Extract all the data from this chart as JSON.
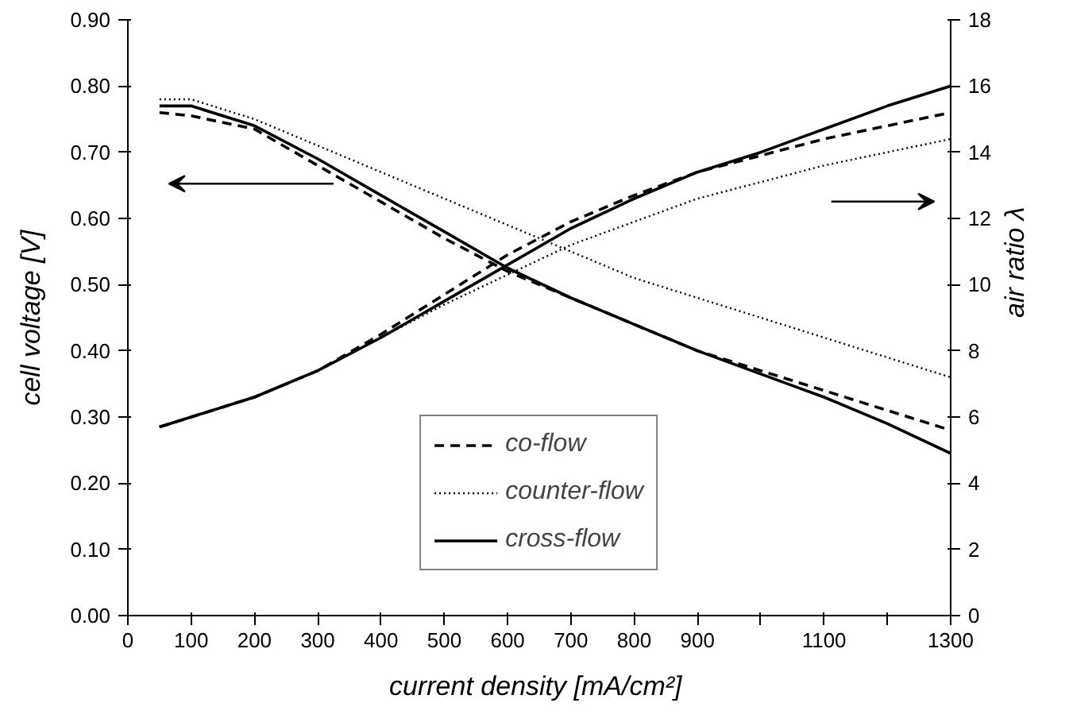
{
  "chart_data": {
    "type": "line",
    "xlabel": "current density  [mA/cm²]",
    "ylabel": "cell voltage [V]",
    "y2label": "air ratio λ",
    "x": [
      50,
      100,
      200,
      300,
      400,
      500,
      600,
      700,
      800,
      900,
      1000,
      1100,
      1200,
      1300
    ],
    "xlim": [
      0,
      1300
    ],
    "xticks": [
      0,
      100,
      200,
      300,
      400,
      500,
      600,
      700,
      800,
      900,
      {
        "value": 1000,
        "label": null
      },
      1100,
      {
        "value": 1200,
        "label": null
      },
      1300
    ],
    "ylim": [
      0,
      0.9
    ],
    "yticks": [
      {
        "value": 0,
        "label": "0.00"
      },
      {
        "value": 0.1,
        "label": "0.10"
      },
      {
        "value": 0.2,
        "label": "0.20"
      },
      {
        "value": 0.3,
        "label": "0.30"
      },
      {
        "value": 0.4,
        "label": "0.40"
      },
      {
        "value": 0.5,
        "label": "0.50"
      },
      {
        "value": 0.6,
        "label": "0.60"
      },
      {
        "value": 0.7,
        "label": "0.70"
      },
      {
        "value": 0.8,
        "label": "0.80"
      },
      {
        "value": 0.9,
        "label": "0.90"
      }
    ],
    "y2lim": [
      0,
      18
    ],
    "y2ticks": [
      0,
      2,
      4,
      6,
      8,
      10,
      12,
      14,
      16,
      18
    ],
    "grid": false,
    "legend": "bottom",
    "marker": "none",
    "series": [
      {
        "name": "co-flow",
        "color": "#000000",
        "line_style": "dashed",
        "values": [
          0.76,
          0.755,
          0.735,
          0.68,
          0.625,
          0.57,
          0.52,
          0.48,
          0.44,
          0.4,
          0.37,
          0.34,
          0.31,
          0.28
        ]
      },
      {
        "name": "counter-flow",
        "color": "#000000",
        "line_style": "dotted",
        "values": [
          0.78,
          0.78,
          0.75,
          0.71,
          0.67,
          0.63,
          0.59,
          0.55,
          0.51,
          0.48,
          0.45,
          0.42,
          0.39,
          0.36
        ]
      },
      {
        "name": "cross-flow",
        "color": "#000000",
        "line_style": "solid",
        "values": [
          0.77,
          0.77,
          0.74,
          0.69,
          0.635,
          0.58,
          0.525,
          0.48,
          0.44,
          0.4,
          0.365,
          0.33,
          0.29,
          0.245
        ]
      },
      {
        "color": "#000000",
        "line_style": "dashed",
        "axis": "y2",
        "values": [
          5.7,
          6.0,
          6.6,
          7.4,
          8.5,
          9.7,
          10.9,
          11.9,
          12.7,
          13.4,
          13.9,
          14.4,
          14.8,
          15.2
        ]
      },
      {
        "color": "#000000",
        "line_style": "dotted",
        "axis": "y2",
        "values": [
          5.7,
          6.0,
          6.6,
          7.4,
          8.4,
          9.4,
          10.3,
          11.2,
          11.9,
          12.6,
          13.1,
          13.6,
          14.0,
          14.4
        ]
      },
      {
        "color": "#000000",
        "line_style": "solid",
        "axis": "y2",
        "values": [
          5.7,
          6.0,
          6.6,
          7.4,
          8.4,
          9.5,
          10.6,
          11.7,
          12.6,
          13.4,
          14.0,
          14.7,
          15.4,
          16.0
        ]
      }
    ]
  }
}
